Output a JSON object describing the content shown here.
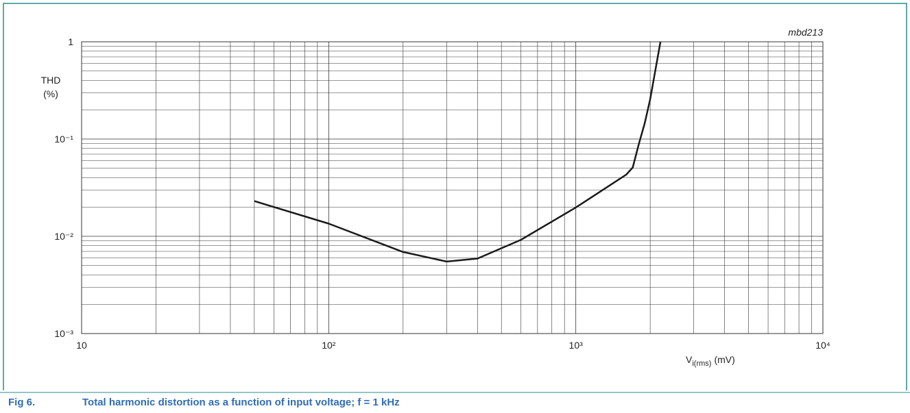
{
  "chart_data": {
    "type": "line",
    "code": "mbd213",
    "ylabel": [
      "THD",
      "(%)"
    ],
    "xlabel": {
      "main": "V",
      "sub": "i(rms)",
      "unit": "(mV)"
    },
    "caption": {
      "number": "Fig 6.",
      "text": "Total harmonic distortion as a function of input voltage; f = 1 kHz"
    },
    "xlog": true,
    "ylog": true,
    "grid": true,
    "xlim": [
      10,
      10000
    ],
    "xticks": [
      10,
      {
        "value": 100,
        "label": "10²"
      },
      {
        "value": 1000,
        "label": "10³"
      },
      {
        "value": 10000,
        "label": "10⁴"
      }
    ],
    "ylim": [
      0.001,
      1
    ],
    "yticks": [
      {
        "value": 0.001,
        "label": "10⁻³"
      },
      {
        "value": 0.01,
        "label": "10⁻²"
      },
      {
        "value": 0.1,
        "label": "10⁻¹"
      },
      1
    ],
    "series": [
      {
        "color": "#1a1a1a",
        "x": [
          50,
          100,
          200,
          300,
          400,
          600,
          1000,
          1600,
          1700,
          1800,
          1900,
          2000,
          2200
        ],
        "values": [
          0.023,
          0.0135,
          0.0069,
          0.0055,
          0.0059,
          0.0092,
          0.0198,
          0.043,
          0.051,
          0.089,
          0.145,
          0.256,
          1
        ]
      }
    ]
  }
}
